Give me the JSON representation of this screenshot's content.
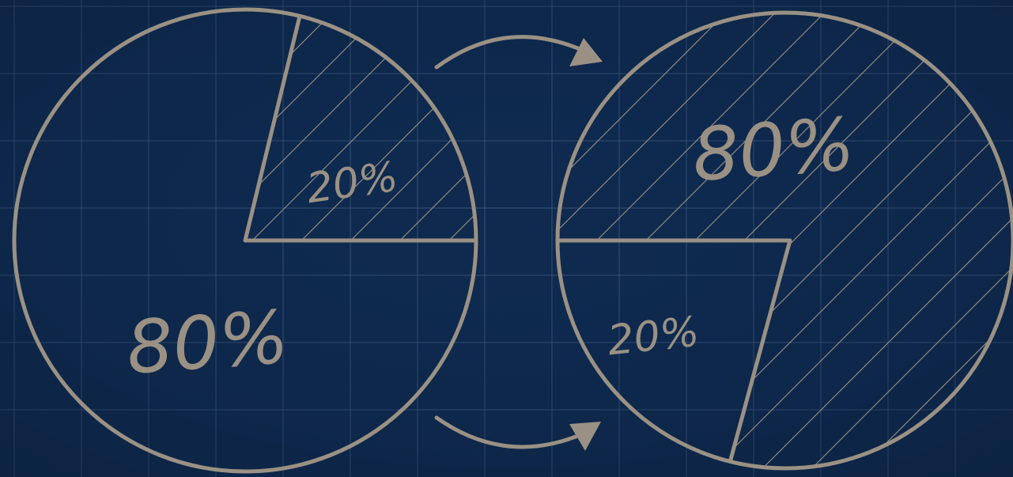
{
  "colors": {
    "background": "#0f2a4e",
    "grid": "#3b557a",
    "ink": "#9a9184",
    "label": "#938a7e"
  },
  "chart_data": [
    {
      "type": "pie",
      "hatched": "small-slice",
      "arrangement": "before",
      "slices": [
        {
          "label": "80%",
          "value": 80
        },
        {
          "label": "20%",
          "value": 20
        }
      ]
    },
    {
      "type": "pie",
      "hatched": "large-slice",
      "arrangement": "after",
      "slices": [
        {
          "label": "80%",
          "value": 80
        },
        {
          "label": "20%",
          "value": 20
        }
      ]
    }
  ],
  "arrows": [
    {
      "direction": "top",
      "icon": "curved-arrow-right"
    },
    {
      "direction": "bottom",
      "icon": "curved-arrow-right"
    }
  ]
}
